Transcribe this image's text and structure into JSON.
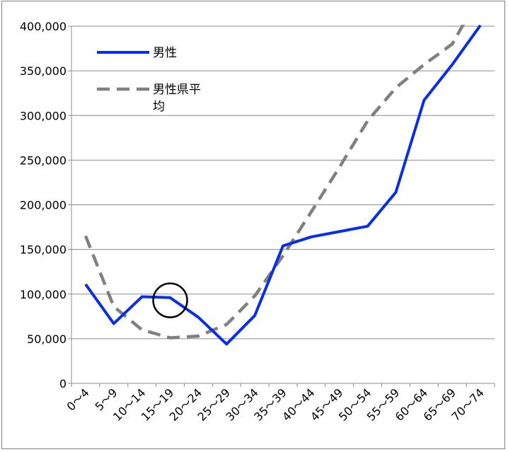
{
  "chart_data": {
    "type": "line",
    "title": "",
    "xlabel": "",
    "ylabel": "",
    "categories": [
      "0～4",
      "5～9",
      "10～14",
      "15～19",
      "20～24",
      "25～29",
      "30～34",
      "35～39",
      "40～44",
      "45～49",
      "50～54",
      "55～59",
      "60～64",
      "65～69",
      "70～74"
    ],
    "ylim": [
      0,
      400000
    ],
    "yticks": [
      {
        "value": 0,
        "label": "0"
      },
      {
        "value": 50000,
        "label": "50,000"
      },
      {
        "value": 100000,
        "label": "100,000"
      },
      {
        "value": 150000,
        "label": "150,000"
      },
      {
        "value": 200000,
        "label": "200,000"
      },
      {
        "value": 250000,
        "label": "250,000"
      },
      {
        "value": 300000,
        "label": "300,000"
      },
      {
        "value": 350000,
        "label": "350,000"
      },
      {
        "value": 400000,
        "label": "400,000"
      }
    ],
    "grid": "horizontal",
    "legend_position": "top-left",
    "series": [
      {
        "name": "男性",
        "color": "#0a2ee6",
        "style": "solid",
        "values": [
          111000,
          67000,
          97000,
          96000,
          74000,
          44000,
          76000,
          154000,
          164000,
          170000,
          176000,
          214000,
          317000,
          357000,
          401000
        ]
      },
      {
        "name": "男性県平均",
        "legend_lines": [
          "男性県平",
          "均"
        ],
        "color": "#808080",
        "style": "dashed",
        "values": [
          165000,
          86000,
          60000,
          51000,
          53000,
          66000,
          98000,
          143000,
          192000,
          242000,
          294000,
          331000,
          357000,
          380000,
          436000
        ]
      }
    ],
    "annotation": {
      "type": "circle-marker",
      "category": "15～19",
      "value": 93000
    }
  }
}
